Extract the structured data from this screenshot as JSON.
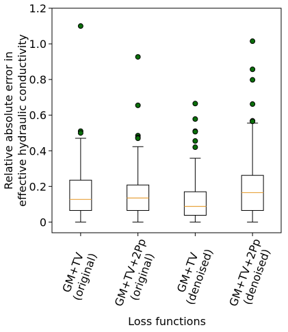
{
  "chart_data": {
    "type": "boxplot",
    "ylabel": [
      "Relative absolute error in",
      "effective hydraulic conductivity"
    ],
    "xlabel": "Loss functions",
    "categories": [
      "GM+TV\n(original)",
      "GM+TV+2Pp\n(original)",
      "GM+TV\n(denoised)",
      "GM+TV+2Pp\n(denoised)"
    ],
    "boxes": [
      {
        "whislo": 0,
        "q1": 0.065,
        "med": 0.127,
        "q3": 0.235,
        "whishi": 0.47,
        "fliers": [
          1.1,
          0.51,
          0.5
        ]
      },
      {
        "whislo": 0,
        "q1": 0.065,
        "med": 0.135,
        "q3": 0.208,
        "whishi": 0.423,
        "fliers": [
          0.927,
          0.655,
          0.485,
          0.475,
          0.47
        ]
      },
      {
        "whislo": 0,
        "q1": 0.038,
        "med": 0.088,
        "q3": 0.17,
        "whishi": 0.358,
        "fliers": [
          0.665,
          0.578,
          0.51,
          0.507,
          0.455,
          0.42
        ]
      },
      {
        "whislo": 0,
        "q1": 0.065,
        "med": 0.165,
        "q3": 0.262,
        "whishi": 0.555,
        "fliers": [
          1.015,
          0.857,
          0.798,
          0.662,
          0.568,
          0.565
        ]
      }
    ],
    "box_color": "#000000",
    "median_color": "#e8a33d",
    "flier_color": "#0a6e0a",
    "ylim": [
      -0.06,
      1.2
    ],
    "yticks": [
      0,
      0.2,
      0.4,
      0.6,
      0.8,
      {
        "value": 1,
        "label": "1.0"
      },
      1.2
    ]
  }
}
